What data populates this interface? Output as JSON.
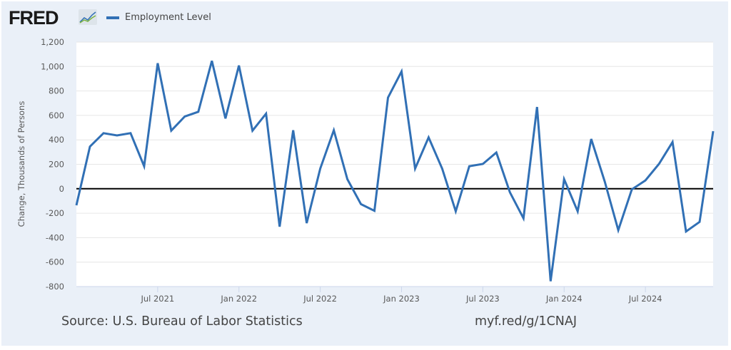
{
  "header": {
    "logo": "FRED",
    "legend_label": "Employment Level"
  },
  "footer": {
    "source": "Source: U.S. Bureau of Labor Statistics",
    "url": "myf.red/g/1CNAJ"
  },
  "colors": {
    "line": "#3170b5",
    "zero_line": "#000000",
    "background": "#eaf0f8"
  },
  "chart_data": {
    "type": "line",
    "title": "",
    "xlabel": "",
    "ylabel": "Change, Thousands of Persons",
    "ylim": [
      -800,
      1200
    ],
    "yticks": [
      -800,
      -600,
      -400,
      -200,
      0,
      200,
      400,
      600,
      800,
      1000,
      1200
    ],
    "ytick_labels": [
      "-800",
      "-600",
      "-400",
      "-200",
      "0",
      "200",
      "400",
      "600",
      "800",
      "1,000",
      "1,200"
    ],
    "xtick_labels": [
      {
        "label": "Jul 2021",
        "index": 6
      },
      {
        "label": "Jan 2022",
        "index": 12
      },
      {
        "label": "Jul 2022",
        "index": 18
      },
      {
        "label": "Jan 2023",
        "index": 24
      },
      {
        "label": "Jul 2023",
        "index": 30
      },
      {
        "label": "Jan 2024",
        "index": 36
      },
      {
        "label": "Jul 2024",
        "index": 42
      }
    ],
    "x_start": "Jan 2021",
    "x_end": "Dec 2024",
    "grid": true,
    "legend": "top-left",
    "series": [
      {
        "name": "Employment Level",
        "values": [
          -135,
          345,
          455,
          436,
          455,
          184,
          1027,
          475,
          591,
          630,
          1046,
          575,
          1008,
          475,
          614,
          -310,
          479,
          -281,
          165,
          479,
          78,
          -126,
          -180,
          746,
          959,
          165,
          420,
          165,
          -184,
          184,
          203,
          296,
          -29,
          -242,
          669,
          -756,
          78,
          -184,
          407,
          58,
          -339,
          -5,
          68,
          203,
          382,
          -349,
          -271,
          471
        ]
      }
    ]
  }
}
